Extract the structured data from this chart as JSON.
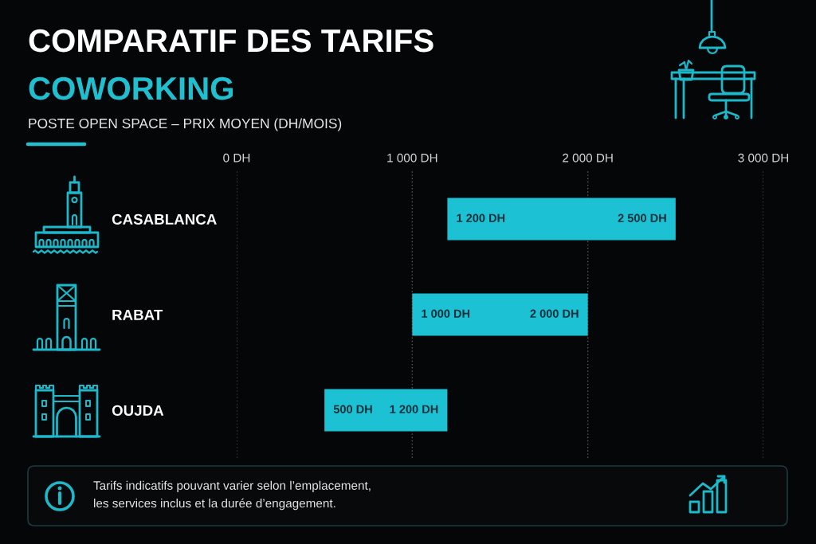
{
  "chart_data": {
    "type": "bar",
    "orientation": "horizontal",
    "title": "COMPARATIF DES TARIFS\nCOWORKING",
    "subtitle": "POSTE OPEN SPACE – PRIX MOYEN (DH/MOIS)",
    "categories": [
      "CASABLANCA",
      "RABAT",
      "OUJDA"
    ],
    "base": [
      1200,
      1000,
      500
    ],
    "values": [
      1300,
      1000,
      700
    ],
    "color": "#1cc2d4",
    "xlim": [
      0,
      3000
    ],
    "xticks": [
      {
        "value": 0,
        "label": "0 DH"
      },
      {
        "value": 1000,
        "label": "1 000 DH"
      },
      {
        "value": 2000,
        "label": "2 000 DH"
      },
      {
        "value": 3000,
        "label": "3 000 DH"
      }
    ],
    "grid": "x",
    "annotations": [
      {
        "text": "1 200 DH",
        "x": 1200,
        "y": "CASABLANCA"
      },
      {
        "text": "2 500 DH",
        "x": 2500,
        "y": "CASABLANCA"
      },
      {
        "text": "1 000 DH",
        "x": 1000,
        "y": "RABAT"
      },
      {
        "text": "2 000 DH",
        "x": 2000,
        "y": "RABAT"
      },
      {
        "text": "500 DH",
        "x": 500,
        "y": "OUJDA"
      },
      {
        "text": "1 200 DH",
        "x": 1200,
        "y": "OUJDA"
      },
      "Tarifs indicatifs pouvant varier selon l’emplacement,\nles services inclus et la durée d’engagement."
    ]
  }
}
